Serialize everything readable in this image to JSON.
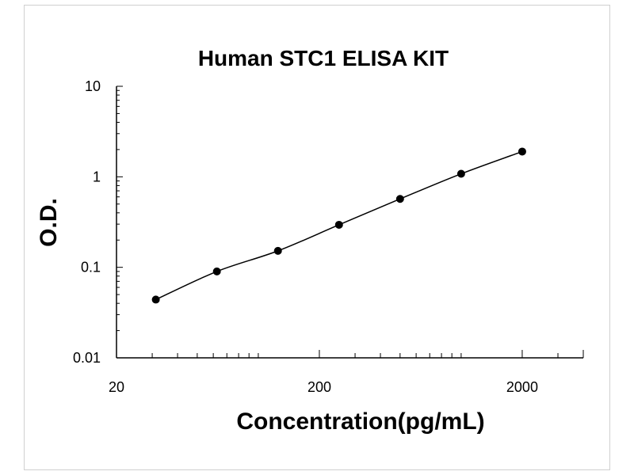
{
  "chart_data": {
    "type": "scatter",
    "title": "Human STC1 ELISA KIT",
    "xlabel": "Concentration(pg/mL)",
    "ylabel": "O.D.",
    "x_scale": "log",
    "y_scale": "log",
    "xlim": [
      20,
      4000
    ],
    "ylim": [
      0.01,
      10
    ],
    "x_ticks": [
      {
        "value": 20,
        "label": "20"
      },
      {
        "value": 200,
        "label": "200"
      },
      {
        "value": 2000,
        "label": "2000"
      }
    ],
    "y_ticks": [
      {
        "value": 0.01,
        "label": "0.01"
      },
      {
        "value": 0.1,
        "label": "0.1"
      },
      {
        "value": 1,
        "label": "1"
      },
      {
        "value": 10,
        "label": "10"
      }
    ],
    "grid": false,
    "legend": "none",
    "series": [
      {
        "x": [
          31.25,
          62.5,
          125,
          250,
          500,
          1000,
          2000
        ],
        "y": [
          0.044,
          0.09,
          0.152,
          0.295,
          0.57,
          1.08,
          1.9
        ],
        "marker": "circle",
        "fit_line": true
      }
    ],
    "colors": {
      "line": "#000000",
      "marker": "#000000",
      "axis": "#000000"
    }
  }
}
